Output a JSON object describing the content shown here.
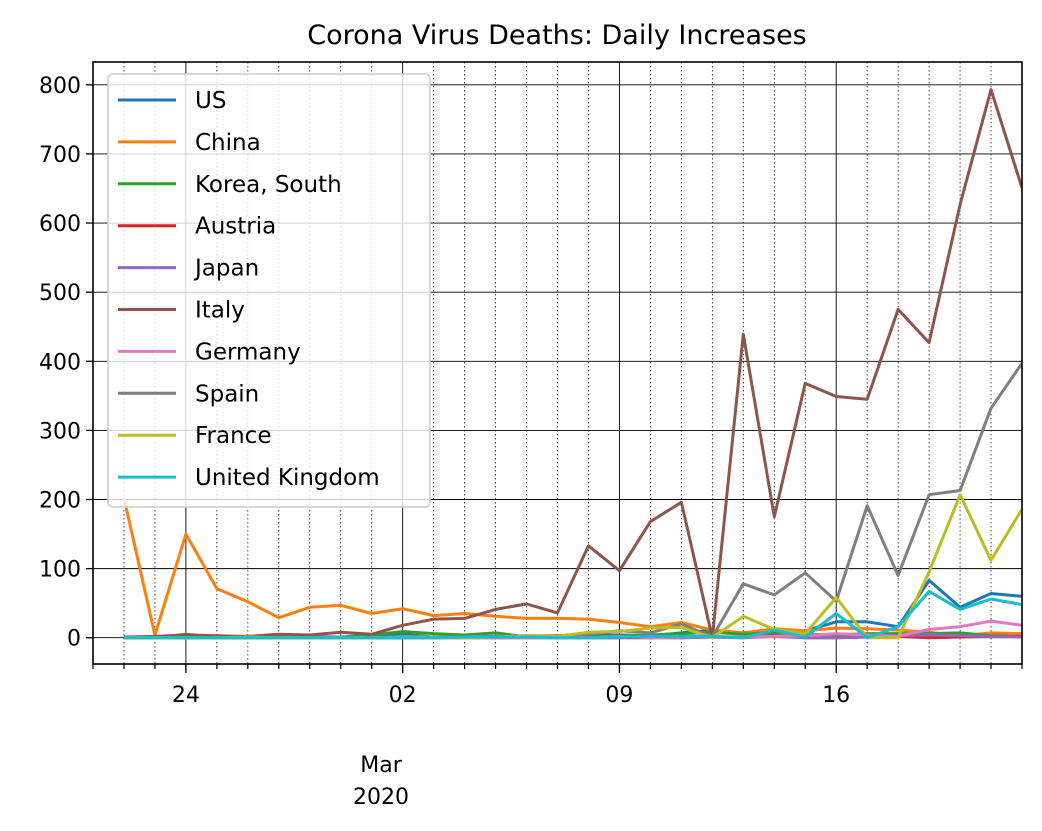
{
  "chart_data": {
    "type": "line",
    "title": "Corona Virus Deaths: Daily Increases",
    "x": [
      "2020-02-22",
      "2020-02-23",
      "2020-02-24",
      "2020-02-25",
      "2020-02-26",
      "2020-02-27",
      "2020-02-28",
      "2020-02-29",
      "2020-03-01",
      "2020-03-02",
      "2020-03-03",
      "2020-03-04",
      "2020-03-05",
      "2020-03-06",
      "2020-03-07",
      "2020-03-08",
      "2020-03-09",
      "2020-03-10",
      "2020-03-11",
      "2020-03-12",
      "2020-03-13",
      "2020-03-14",
      "2020-03-15",
      "2020-03-16",
      "2020-03-17",
      "2020-03-18",
      "2020-03-19",
      "2020-03-20",
      "2020-03-21",
      "2020-03-22"
    ],
    "xlim": [
      "2020-02-21",
      "2020-03-22"
    ],
    "ylim": [
      -38,
      833
    ],
    "yticks": [
      0,
      100,
      200,
      300,
      400,
      500,
      600,
      700,
      800
    ],
    "xticks_major": [
      {
        "date": "2020-02-24",
        "label": "24"
      },
      {
        "date": "2020-03-02",
        "label": "02"
      },
      {
        "date": "2020-03-09",
        "label": "09"
      },
      {
        "date": "2020-03-16",
        "label": "16"
      }
    ],
    "month_label": "Mar",
    "year_label": "2020",
    "grid": true,
    "legend": "upper-left",
    "series": [
      {
        "name": "US",
        "color": "#1f77b4",
        "values": [
          0,
          0,
          0,
          0,
          0,
          0,
          0,
          1,
          1,
          5,
          1,
          4,
          1,
          2,
          3,
          4,
          4,
          3,
          7,
          11,
          7,
          11,
          10,
          23,
          23,
          16,
          83,
          44,
          64,
          60
        ]
      },
      {
        "name": "China",
        "color": "#ff7f0e",
        "values": [
          202,
          4,
          150,
          71,
          52,
          29,
          44,
          47,
          35,
          42,
          32,
          35,
          31,
          28,
          28,
          27,
          22,
          16,
          22,
          11,
          7,
          13,
          10,
          14,
          13,
          11,
          8,
          3,
          7,
          6
        ]
      },
      {
        "name": "Korea, South",
        "color": "#2ca02c",
        "values": [
          1,
          0,
          5,
          1,
          2,
          1,
          0,
          1,
          4,
          9,
          6,
          4,
          7,
          1,
          3,
          2,
          2,
          4,
          6,
          8,
          5,
          7,
          5,
          4,
          6,
          6,
          6,
          7,
          3,
          2
        ]
      },
      {
        "name": "Austria",
        "color": "#d62728",
        "values": [
          0,
          0,
          0,
          0,
          0,
          0,
          0,
          0,
          0,
          0,
          0,
          0,
          0,
          0,
          0,
          0,
          0,
          0,
          0,
          1,
          0,
          3,
          0,
          0,
          1,
          2,
          0,
          1,
          2,
          2
        ]
      },
      {
        "name": "Japan",
        "color": "#9467bd",
        "values": [
          0,
          0,
          0,
          0,
          0,
          0,
          2,
          1,
          0,
          1,
          0,
          1,
          2,
          1,
          2,
          0,
          0,
          3,
          0,
          1,
          0,
          2,
          0,
          0,
          1,
          3,
          4,
          3,
          2,
          1
        ]
      },
      {
        "name": "Italy",
        "color": "#8c564b",
        "values": [
          1,
          2,
          4,
          3,
          2,
          5,
          4,
          8,
          5,
          18,
          27,
          28,
          41,
          49,
          36,
          133,
          97,
          168,
          196,
          0,
          439,
          175,
          368,
          349,
          345,
          475,
          427,
          627,
          793,
          651
        ]
      },
      {
        "name": "Germany",
        "color": "#e377c2",
        "values": [
          0,
          0,
          0,
          0,
          0,
          0,
          0,
          0,
          0,
          0,
          0,
          0,
          0,
          0,
          0,
          0,
          2,
          0,
          1,
          2,
          1,
          2,
          3,
          6,
          4,
          2,
          12,
          16,
          24,
          18
        ]
      },
      {
        "name": "Spain",
        "color": "#7f7f7f",
        "values": [
          0,
          0,
          0,
          0,
          0,
          0,
          0,
          0,
          0,
          0,
          1,
          1,
          2,
          3,
          3,
          5,
          10,
          7,
          20,
          1,
          78,
          62,
          94,
          53,
          191,
          90,
          207,
          213,
          332,
          397
        ]
      },
      {
        "name": "France",
        "color": "#bcbd22",
        "values": [
          0,
          0,
          0,
          0,
          1,
          0,
          0,
          0,
          0,
          1,
          1,
          0,
          1,
          3,
          2,
          8,
          9,
          14,
          15,
          0,
          31,
          12,
          6,
          58,
          0,
          0,
          95,
          207,
          112,
          186
        ]
      },
      {
        "name": "United Kingdom",
        "color": "#17becf",
        "values": [
          0,
          0,
          0,
          0,
          0,
          0,
          0,
          0,
          0,
          0,
          0,
          1,
          1,
          1,
          0,
          0,
          1,
          2,
          2,
          2,
          0,
          11,
          1,
          35,
          0,
          16,
          67,
          41,
          56,
          48
        ]
      }
    ]
  }
}
